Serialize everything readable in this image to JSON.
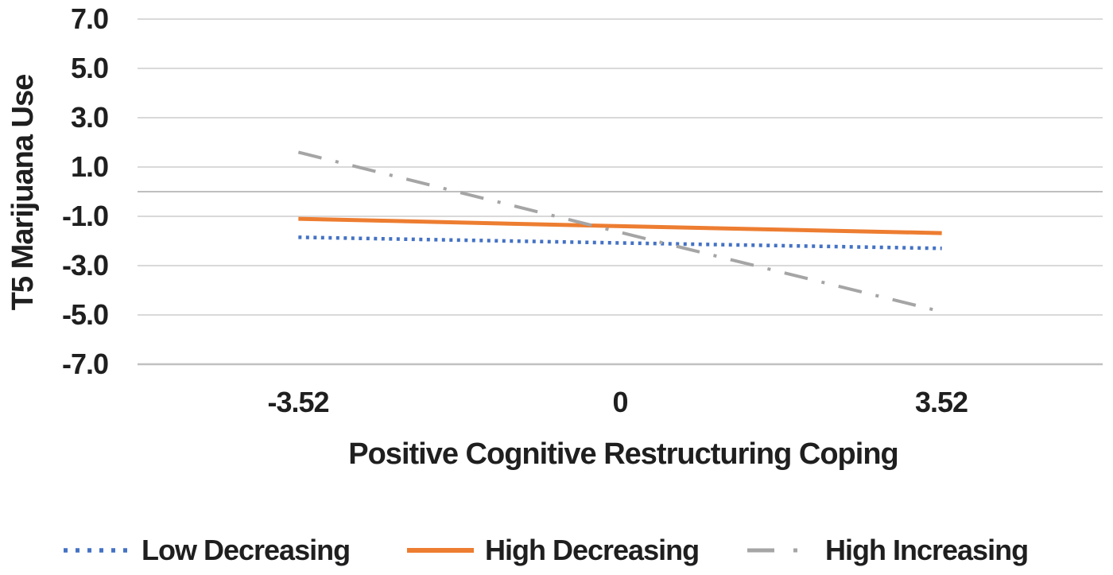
{
  "chart_data": {
    "type": "line",
    "title": "",
    "xlabel": "Positive Cognitive Restructuring Coping",
    "ylabel": "T5 Marijuana Use",
    "categories": [
      "-3.52",
      "0",
      "3.52"
    ],
    "y_ticks": [
      "7.0",
      "5.0",
      "3.0",
      "1.0",
      "-1.0",
      "-3.0",
      "-5.0",
      "-7.0"
    ],
    "ylim": [
      -7,
      7
    ],
    "grid": true,
    "legend_position": "bottom",
    "axis_line_value": 0,
    "colors": {
      "gridline": "#D9D9D9",
      "zero_axis_line": "#BFBFBF",
      "bottom_line": "#C0C0C0",
      "text": "#1F1F1F"
    },
    "series": [
      {
        "name": "Low Decreasing",
        "color": "#4472C4",
        "style": "dotted",
        "values": [
          -1.85,
          -2.08,
          -2.3
        ]
      },
      {
        "name": "High Decreasing",
        "color": "#ED7D31",
        "style": "solid",
        "values": [
          -1.1,
          -1.4,
          -1.68
        ]
      },
      {
        "name": "High Increasing",
        "color": "#A5A5A5",
        "style": "dashdot",
        "values": [
          1.6,
          -1.65,
          -4.87
        ]
      }
    ]
  }
}
